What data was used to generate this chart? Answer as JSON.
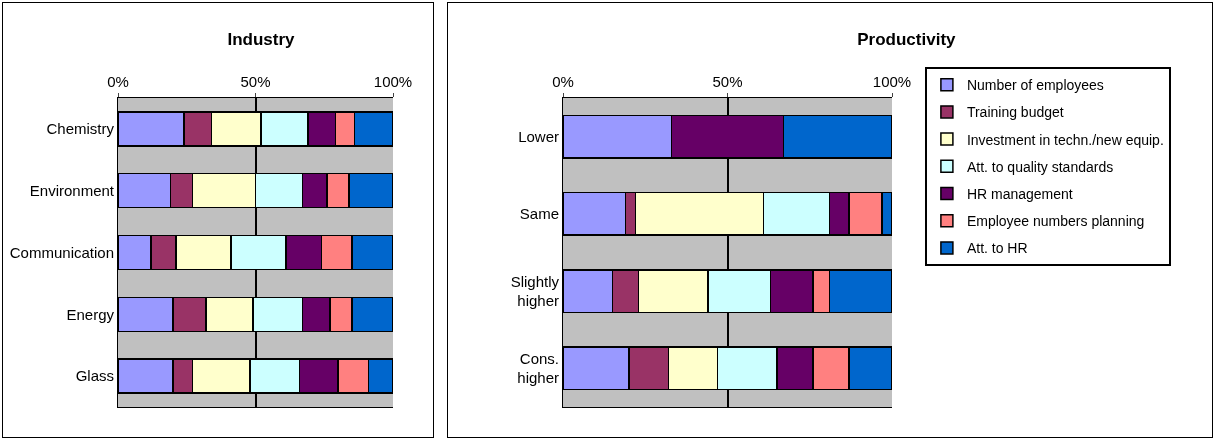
{
  "chart_data": [
    {
      "type": "bar",
      "title": "Industry",
      "orientation": "horizontal",
      "stacked": true,
      "categories": [
        "Chemistry",
        "Environment",
        "Communication",
        "Energy",
        "Glass"
      ],
      "series": [
        {
          "color": "#9999ff",
          "values": [
            24,
            19,
            12,
            20,
            20
          ]
        },
        {
          "color": "#993366",
          "values": [
            10,
            8,
            9,
            12,
            7
          ]
        },
        {
          "color": "#ffffcc",
          "values": [
            18,
            23,
            20,
            17,
            21
          ]
        },
        {
          "color": "#ccffff",
          "values": [
            17,
            17,
            20,
            18,
            18
          ]
        },
        {
          "color": "#660066",
          "values": [
            10,
            9,
            13,
            10,
            14
          ]
        },
        {
          "color": "#ff8080",
          "values": [
            7,
            8,
            11,
            8,
            11
          ]
        },
        {
          "color": "#0066cc",
          "values": [
            14,
            16,
            15,
            15,
            9
          ]
        }
      ],
      "xlim": [
        0,
        100
      ],
      "xticks": [
        {
          "value": 0,
          "label": "0%"
        },
        {
          "value": 50,
          "label": "50%"
        },
        {
          "value": 100,
          "label": "100%"
        }
      ],
      "grid": "x",
      "legend": false
    },
    {
      "type": "bar",
      "title": "Productivity",
      "orientation": "horizontal",
      "stacked": true,
      "categories": [
        "Lower",
        "Same",
        "Slightly higher",
        "Cons. higher"
      ],
      "series": [
        {
          "name": "Number of employees",
          "color": "#9999ff",
          "values": [
            33,
            19,
            15,
            20
          ]
        },
        {
          "name": "Training budget",
          "color": "#993366",
          "values": [
            null,
            3,
            8,
            12
          ]
        },
        {
          "name": "Investment in techn./new equip.",
          "color": "#ffffcc",
          "values": [
            null,
            39,
            21,
            15
          ]
        },
        {
          "name": "Att. to quality standards",
          "color": "#ccffff",
          "values": [
            null,
            20,
            19,
            18
          ]
        },
        {
          "name": "HR management",
          "color": "#660066",
          "values": [
            34,
            6,
            13,
            11
          ]
        },
        {
          "name": "Employee numbers planning",
          "color": "#ff8080",
          "values": [
            null,
            10,
            5,
            11
          ]
        },
        {
          "name": "Att. to HR",
          "color": "#0066cc",
          "values": [
            33,
            3,
            19,
            13
          ]
        }
      ],
      "xlim": [
        0,
        100
      ],
      "xticks": [
        {
          "value": 0,
          "label": "0%"
        },
        {
          "value": 50,
          "label": "50%"
        },
        {
          "value": 100,
          "label": "100%"
        }
      ],
      "grid": "x",
      "legend": "right"
    }
  ]
}
